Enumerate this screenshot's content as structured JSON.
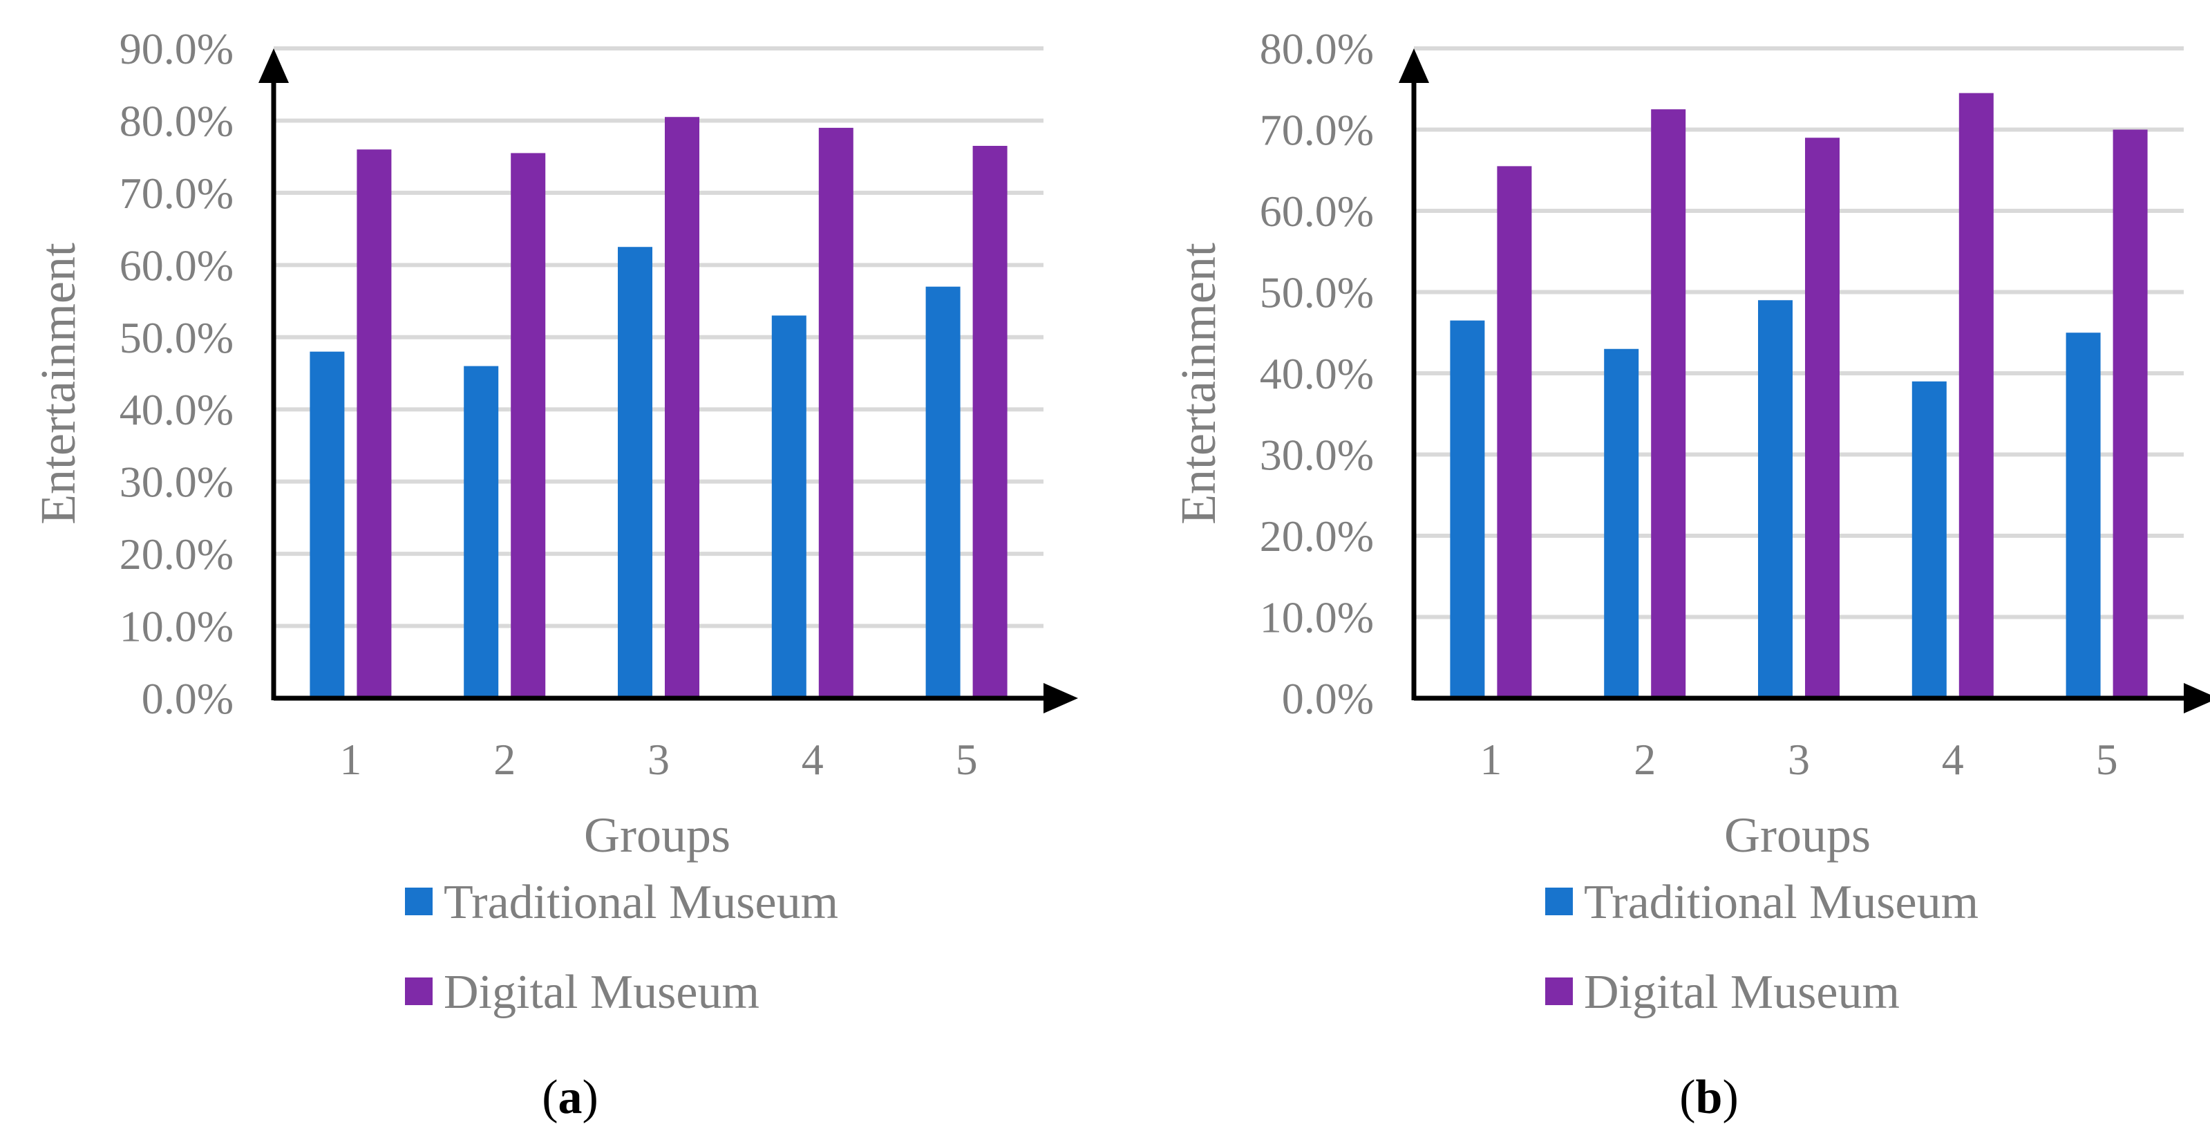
{
  "colors": {
    "traditional": "#1874cd",
    "digital": "#7f2aa8",
    "text": "#7f7f7f",
    "grid": "#d9d9d9"
  },
  "chart_data": [
    {
      "type": "bar",
      "panel_label": "a",
      "categories": [
        "1",
        "2",
        "3",
        "4",
        "5"
      ],
      "series": [
        {
          "name": "Traditional Museum",
          "values": [
            48.0,
            46.0,
            62.5,
            53.0,
            57.0
          ]
        },
        {
          "name": "Digital Museum",
          "values": [
            76.0,
            75.5,
            80.5,
            79.0,
            76.5
          ]
        }
      ],
      "xlabel": "Groups",
      "ylabel": "Entertainment",
      "ylim": [
        0,
        90
      ],
      "yticks": [
        "0.0%",
        "10.0%",
        "20.0%",
        "30.0%",
        "40.0%",
        "50.0%",
        "60.0%",
        "70.0%",
        "80.0%",
        "90.0%"
      ],
      "grid": true,
      "legend_position": "bottom"
    },
    {
      "type": "bar",
      "panel_label": "b",
      "categories": [
        "1",
        "2",
        "3",
        "4",
        "5"
      ],
      "series": [
        {
          "name": "Traditional Museum",
          "values": [
            46.5,
            43.0,
            49.0,
            39.0,
            45.0
          ]
        },
        {
          "name": "Digital Museum",
          "values": [
            65.5,
            72.5,
            69.0,
            74.5,
            70.0
          ]
        }
      ],
      "xlabel": "Groups",
      "ylabel": "Entertainment",
      "ylim": [
        0,
        80
      ],
      "yticks": [
        "0.0%",
        "10.0%",
        "20.0%",
        "30.0%",
        "40.0%",
        "50.0%",
        "60.0%",
        "70.0%",
        "80.0%"
      ],
      "grid": true,
      "legend_position": "bottom"
    }
  ]
}
